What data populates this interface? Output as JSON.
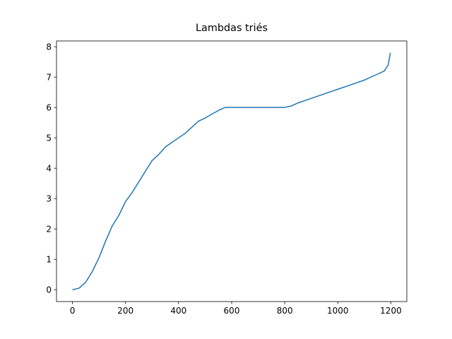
{
  "chart_data": {
    "type": "line",
    "title": "Lambdas triés",
    "x": [
      0,
      25,
      50,
      75,
      100,
      125,
      150,
      175,
      200,
      225,
      250,
      275,
      300,
      325,
      350,
      375,
      400,
      425,
      450,
      475,
      500,
      525,
      550,
      575,
      600,
      700,
      800,
      825,
      850,
      900,
      950,
      1000,
      1050,
      1100,
      1150,
      1175,
      1190,
      1198
    ],
    "series": [
      {
        "color": "#1f77b4",
        "values": [
          0,
          0.05,
          0.25,
          0.6,
          1.05,
          1.6,
          2.1,
          2.45,
          2.9,
          3.2,
          3.55,
          3.9,
          4.25,
          4.45,
          4.7,
          4.85,
          5.0,
          5.15,
          5.35,
          5.55,
          5.65,
          5.78,
          5.9,
          6.0,
          6.0,
          6.0,
          6.0,
          6.05,
          6.15,
          6.3,
          6.45,
          6.6,
          6.75,
          6.9,
          7.1,
          7.2,
          7.4,
          7.8
        ]
      }
    ],
    "xlim": [
      -60,
      1260
    ],
    "xticks": [
      0,
      200,
      400,
      600,
      800,
      1000,
      1200
    ],
    "ylim": [
      -0.39,
      8.19
    ],
    "yticks": [
      0,
      1,
      2,
      3,
      4,
      5,
      6,
      7,
      8
    ]
  }
}
